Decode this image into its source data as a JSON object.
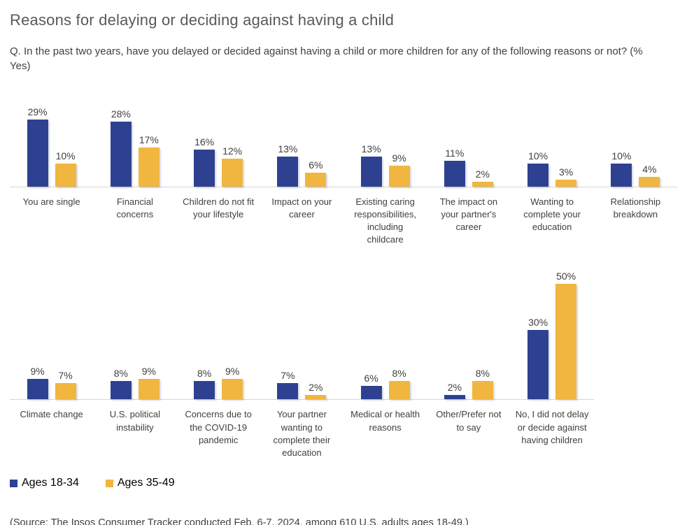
{
  "chart_data": {
    "type": "bar",
    "title": "Reasons for delaying or deciding against having a child",
    "subtitle": "Q. In the past two years, have you delayed or decided against having a child or more children for any of the following reasons or not? (% Yes)",
    "unit": "%",
    "grid": false,
    "value_labels": true,
    "legend_position": "bottom-left",
    "series_names": [
      "Ages 18-34",
      "Ages 35-49"
    ],
    "series_colors": [
      "#2E4191",
      "#F0B640"
    ],
    "rows": [
      {
        "ylim": [
          0,
          32
        ],
        "categories": [
          "You are single",
          "Financial concerns",
          "Children do not fit your lifestyle",
          "Impact on your career",
          "Existing caring responsibilities, including childcare",
          "The impact on your partner's career",
          "Wanting to complete your education",
          "Relationship breakdown"
        ],
        "series": [
          {
            "name": "Ages 18-34",
            "values": [
              29,
              28,
              16,
              13,
              13,
              11,
              10,
              10
            ]
          },
          {
            "name": "Ages 35-49",
            "values": [
              10,
              17,
              12,
              6,
              9,
              2,
              3,
              4
            ]
          }
        ]
      },
      {
        "ylim": [
          0,
          55
        ],
        "categories": [
          "Climate change",
          "U.S. political instability",
          "Concerns due to the COVID-19 pandemic",
          "Your partner wanting to complete their education",
          "Medical or health reasons",
          "Other/Prefer not to say",
          "No, I did not delay or decide against having children"
        ],
        "series": [
          {
            "name": "Ages 18-34",
            "values": [
              9,
              8,
              8,
              7,
              6,
              2,
              30
            ]
          },
          {
            "name": "Ages 35-49",
            "values": [
              7,
              9,
              9,
              2,
              8,
              8,
              50
            ]
          }
        ]
      }
    ],
    "source": "(Source: The Ipsos Consumer Tracker conducted Feb. 6-7, 2024, among 610 U.S. adults ages 18-49.)"
  },
  "legend": {
    "items": [
      {
        "label": "Ages 18-34",
        "color": "#2E4191"
      },
      {
        "label": "Ages 35-49",
        "color": "#F0B640"
      }
    ]
  },
  "colors": {
    "series1": "#2E4191",
    "series2": "#F0B640",
    "axis_line": "#D6D6D6",
    "title_text": "#58595B",
    "body_text": "#404040",
    "background": "#FFFFFF"
  }
}
